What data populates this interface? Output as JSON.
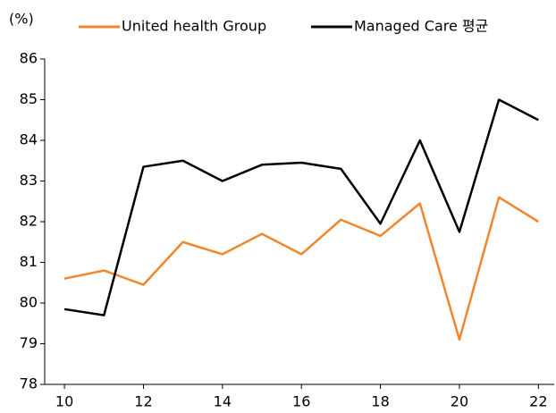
{
  "chart_data": {
    "type": "line",
    "ylabel": "(%)",
    "x": [
      10,
      11,
      12,
      13,
      14,
      15,
      16,
      17,
      18,
      19,
      20,
      21,
      22
    ],
    "series": [
      {
        "name": "United health Group",
        "color": "#f0862e",
        "values": [
          80.6,
          80.8,
          80.45,
          81.5,
          81.2,
          81.7,
          81.2,
          82.05,
          81.65,
          82.45,
          79.1,
          82.6,
          82.0
        ]
      },
      {
        "name": "Managed Care 평균",
        "color": "#000000",
        "values": [
          79.85,
          79.7,
          83.35,
          83.5,
          83.0,
          83.4,
          83.45,
          83.3,
          81.95,
          84.0,
          81.75,
          85.0,
          84.5
        ]
      }
    ],
    "xlim": [
      9.5,
      22.4
    ],
    "xticks": [
      10,
      12,
      14,
      16,
      18,
      20,
      22
    ],
    "ylim": [
      78,
      86
    ],
    "yticks": [
      78,
      79,
      80,
      81,
      82,
      83,
      84,
      85,
      86
    ],
    "grid": false,
    "legend": "top"
  }
}
